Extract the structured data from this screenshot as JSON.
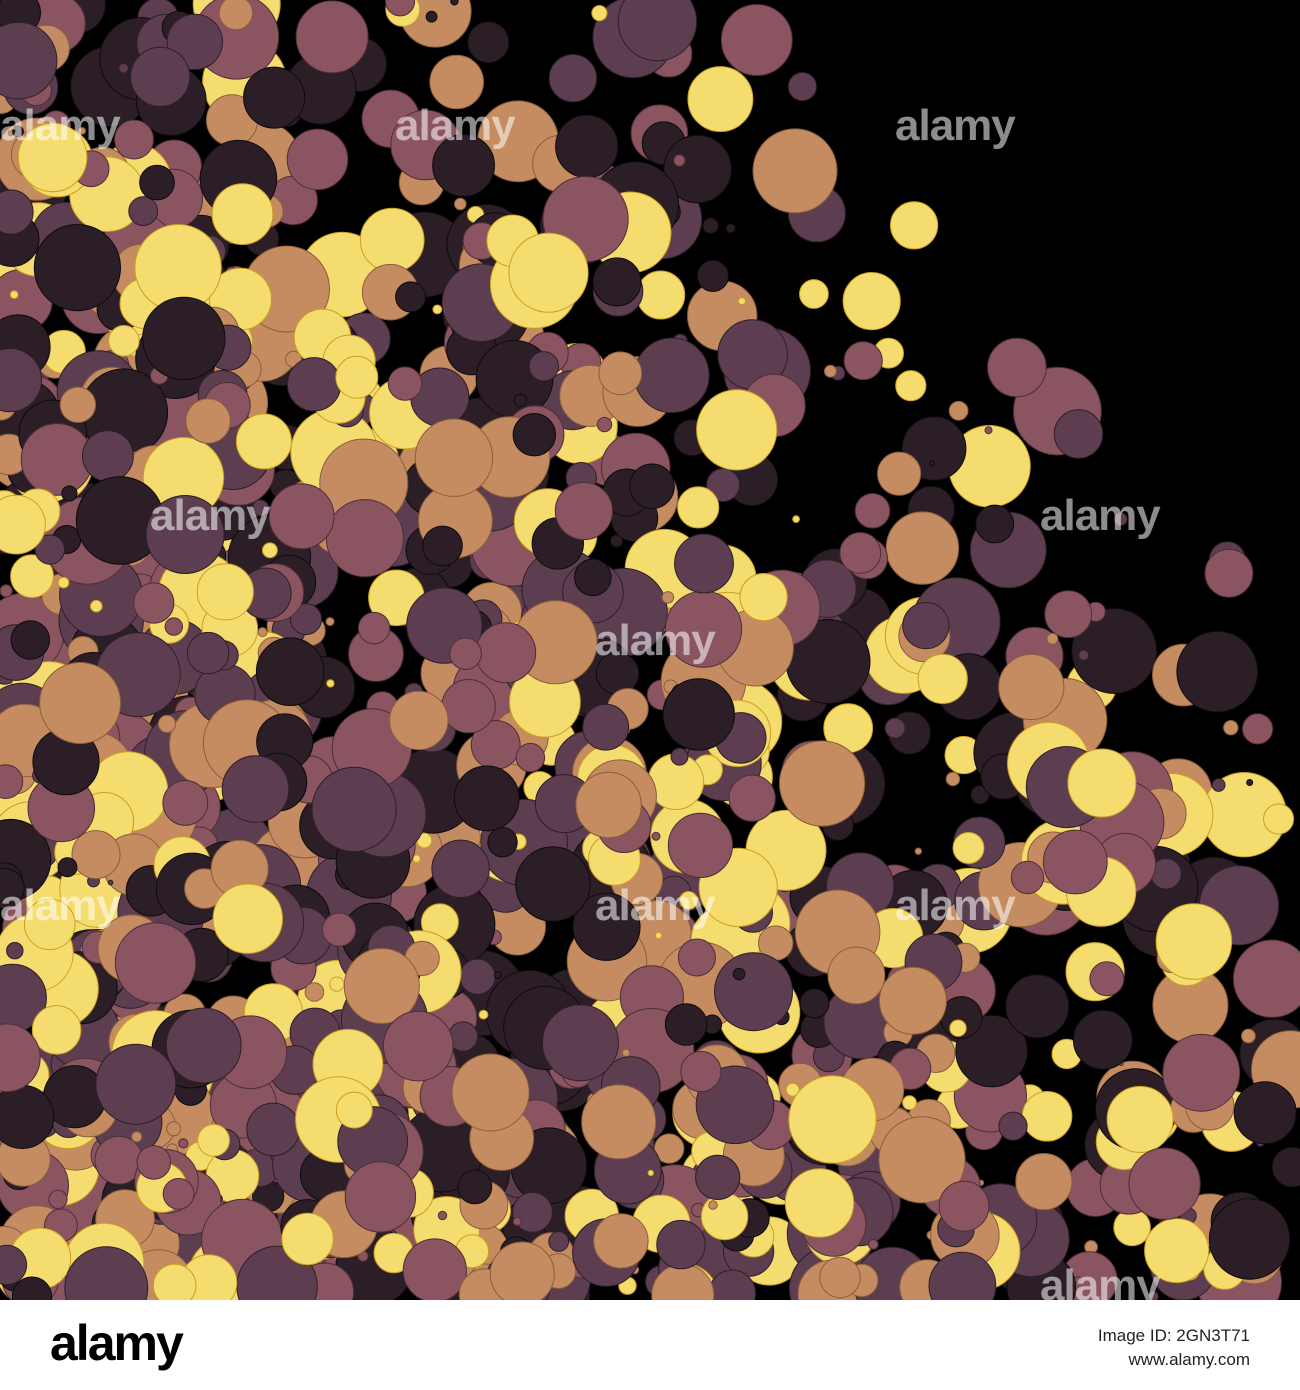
{
  "watermark": "alamy",
  "footer": {
    "logo": "alamy",
    "image_id": "Image ID: 2GN3T71",
    "url": "www.alamy.com"
  }
}
